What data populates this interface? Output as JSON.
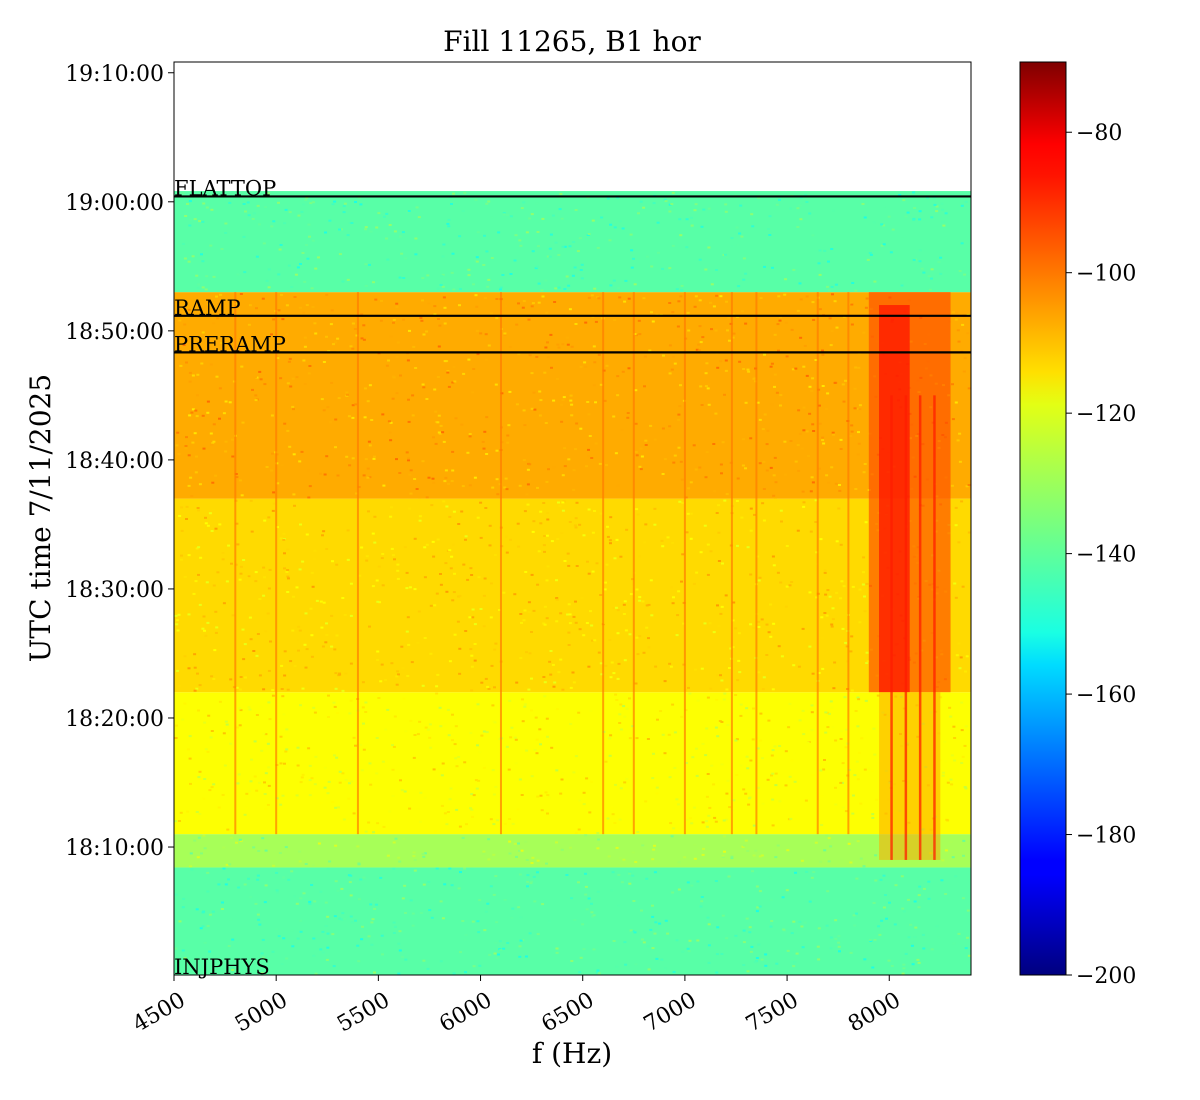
{
  "chart_data": {
    "type": "heatmap",
    "title": "Fill 11265, B1 hor",
    "xlabel": "f (Hz)",
    "ylabel": "UTC time 7/11/2025",
    "xlim": [
      4500,
      8400
    ],
    "ylim": [
      "18:00:05",
      "19:10:50"
    ],
    "x_ticks": [
      4500,
      5000,
      5500,
      6000,
      6500,
      7000,
      7500,
      8000
    ],
    "x_tick_labels": [
      "4500",
      "5000",
      "5500",
      "6000",
      "6500",
      "7000",
      "7500",
      "8000"
    ],
    "y_ticks": [
      "18:10:00",
      "18:20:00",
      "18:30:00",
      "18:40:00",
      "18:50:00",
      "19:00:00",
      "19:10:00"
    ],
    "data_time_range": [
      "18:00:05",
      "19:00:50"
    ],
    "colormap": "jet",
    "colorbar": {
      "range": [
        -200,
        -70
      ],
      "ticks": [
        -80,
        -100,
        -120,
        -140,
        -160,
        -180,
        -200
      ],
      "tick_labels": [
        "−80",
        "−100",
        "−120",
        "−140",
        "−160",
        "−180",
        "−200"
      ]
    },
    "phases": [
      {
        "label": "FLATTOP",
        "time": "19:00:25",
        "line": true
      },
      {
        "label": "RAMP",
        "time": "18:51:10",
        "line": true
      },
      {
        "label": "PRERAMP",
        "time": "18:48:20",
        "line": true
      },
      {
        "label": "INJPHYS",
        "time": "18:00:05",
        "line": false
      }
    ],
    "time_bands": [
      {
        "start": "18:00:05",
        "end": "18:08:25",
        "level_db": -140
      },
      {
        "start": "18:08:25",
        "end": "18:11:00",
        "level_db": -130
      },
      {
        "start": "18:11:00",
        "end": "18:22:00",
        "level_db": -119
      },
      {
        "start": "18:22:00",
        "end": "18:37:00",
        "level_db": -114
      },
      {
        "start": "18:37:00",
        "end": "18:53:00",
        "level_db": -108
      },
      {
        "start": "18:53:00",
        "end": "19:00:50",
        "level_db": -140
      }
    ],
    "spectral_lines_hz": [
      4800,
      5000,
      5400,
      6100,
      6600,
      6750,
      7000,
      7230,
      7350,
      7650,
      7800
    ]
  }
}
